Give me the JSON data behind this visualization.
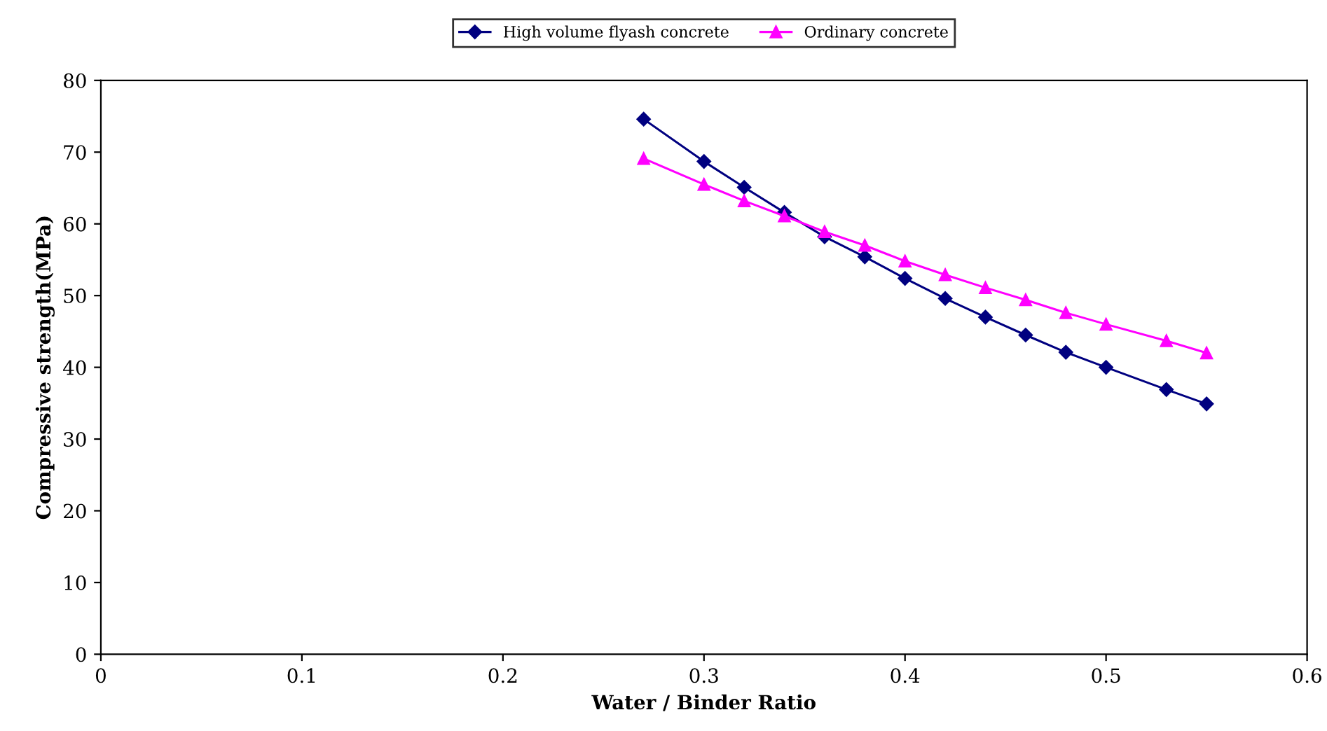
{
  "chart_data": {
    "type": "line",
    "xlabel": "Water / Binder Ratio",
    "ylabel": "Compressive strength(MPa)",
    "xlim": [
      0,
      0.6
    ],
    "xticks": [
      0,
      0.1,
      0.2,
      0.3,
      0.4,
      0.5,
      0.6
    ],
    "ylim": [
      0,
      80
    ],
    "yticks": [
      0,
      10,
      20,
      30,
      40,
      50,
      60,
      70,
      80
    ],
    "grid": false,
    "legend": "top",
    "series": [
      {
        "name": "High volume flyash concrete",
        "color": "#000080",
        "marker": "diamond",
        "x": [
          0.27,
          0.3,
          0.32,
          0.34,
          0.36,
          0.38,
          0.4,
          0.42,
          0.44,
          0.46,
          0.48,
          0.5,
          0.53,
          0.55
        ],
        "values": [
          74.6,
          68.7,
          65.1,
          61.6,
          58.2,
          55.4,
          52.4,
          49.6,
          47.0,
          44.5,
          42.1,
          40.0,
          36.9,
          34.9
        ]
      },
      {
        "name": "Ordinary concrete",
        "color": "#ff00ff",
        "marker": "triangle",
        "x": [
          0.27,
          0.3,
          0.32,
          0.34,
          0.36,
          0.38,
          0.4,
          0.42,
          0.44,
          0.46,
          0.48,
          0.5,
          0.53,
          0.55
        ],
        "values": [
          69.1,
          65.5,
          63.2,
          61.1,
          58.9,
          57.0,
          54.8,
          52.9,
          51.1,
          49.4,
          47.6,
          46.0,
          43.7,
          42.0
        ]
      }
    ]
  }
}
